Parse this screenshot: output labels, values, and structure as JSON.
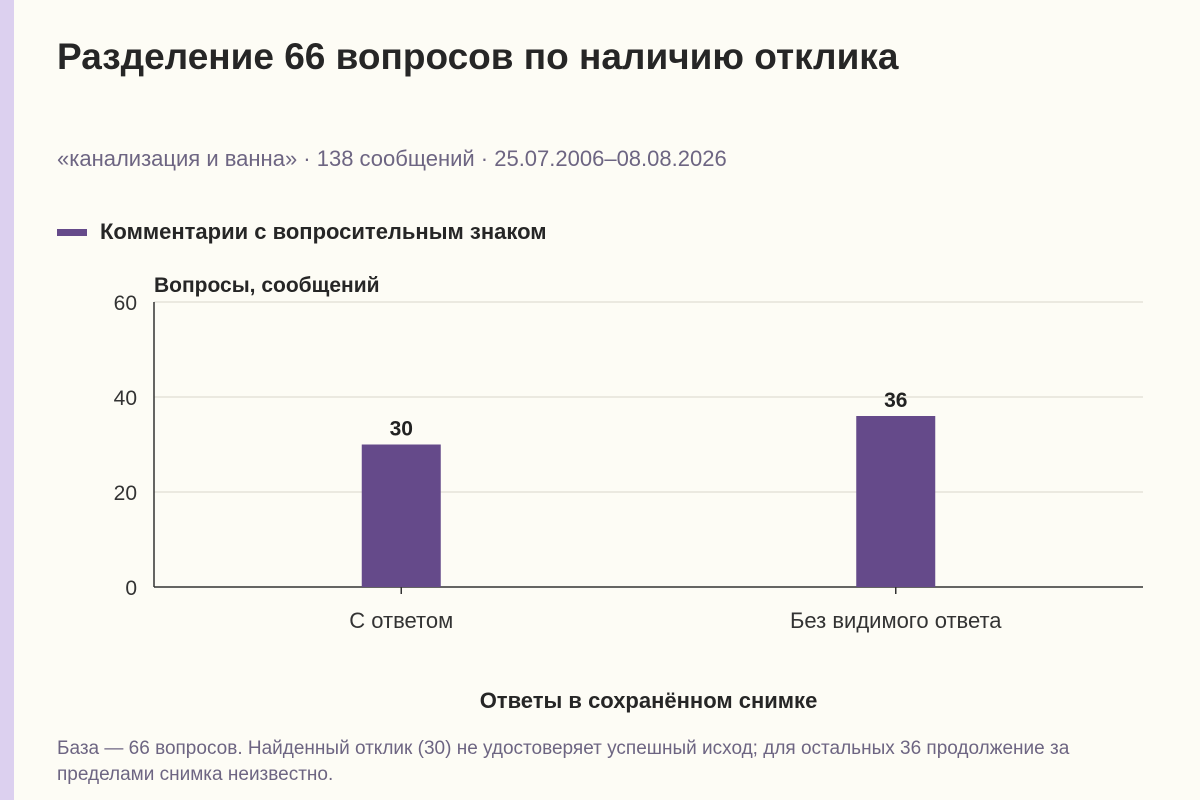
{
  "chart_data": {
    "type": "bar",
    "title": "Разделение 66 вопросов по наличию отклика",
    "subtitle": "«канализация и ванна» · 138 сообщений · 25.07.2006–08.08.2026",
    "categories": [
      "С ответом",
      "Без видимого ответа"
    ],
    "series": [
      {
        "name": "Комментарии с вопросительным знаком",
        "values": [
          30,
          36
        ],
        "color": "#654a8a"
      }
    ],
    "data_labels": [
      "30",
      "36"
    ],
    "xlabel": "Ответы в сохранённом снимке",
    "ylabel": "Вопросы, сообщений",
    "ylim": [
      0,
      60
    ],
    "yticks": [
      0,
      20,
      40,
      60
    ],
    "grid": true,
    "legend_position": "top-left"
  },
  "footnote": "База — 66 вопросов. Найденный отклик (30) не удостоверяет успешный исход; для остальных 36 продолжение за пределами снимка неизвестно."
}
